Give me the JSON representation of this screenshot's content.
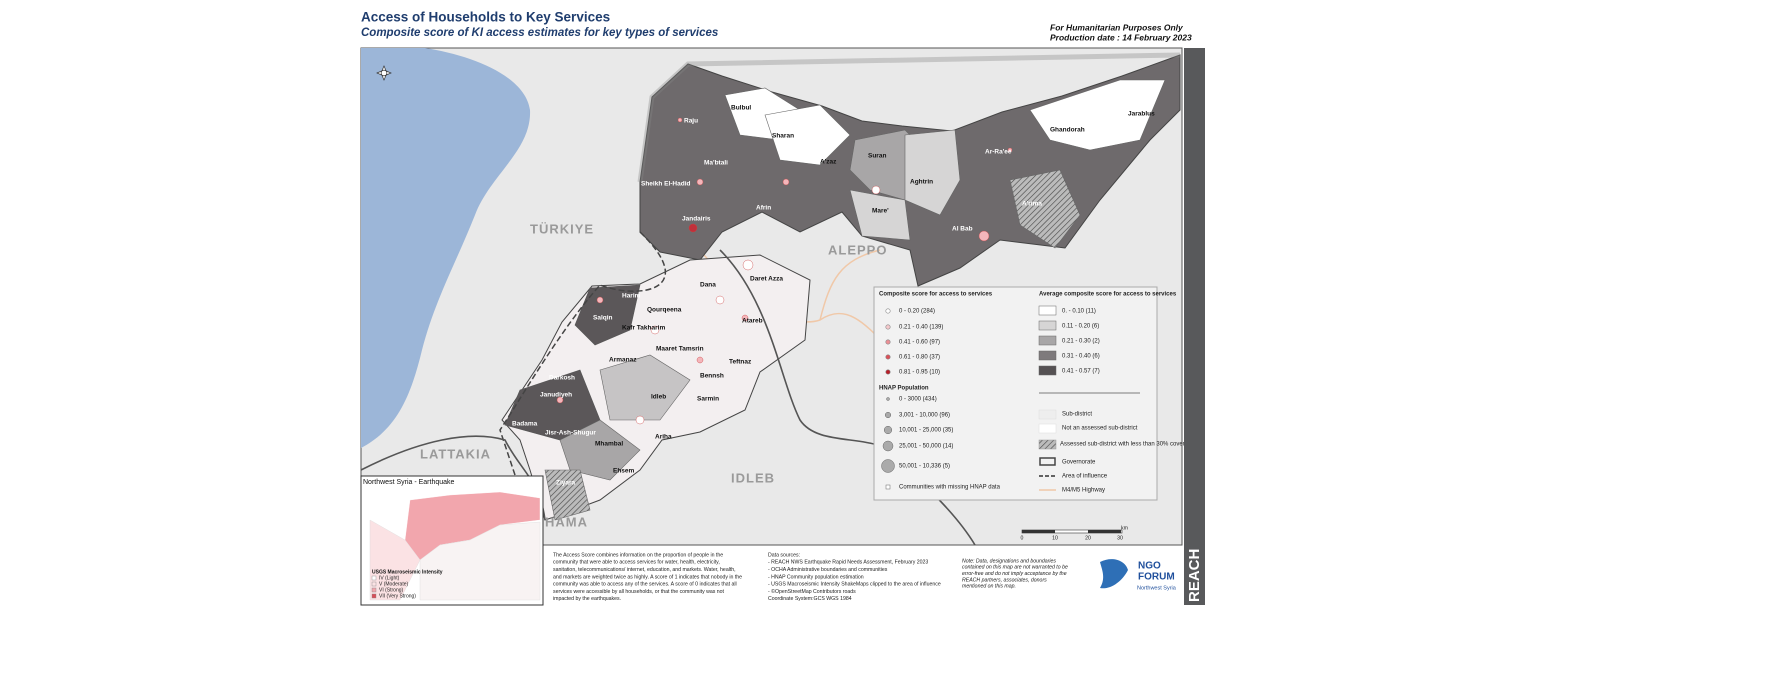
{
  "header": {
    "title": "Access of Households to Key Services",
    "subtitle": "Composite score of KI access estimates for key types of services",
    "notes": [
      "For Humanitarian Purposes Only",
      "Production date : 14 February 2023"
    ]
  },
  "map": {
    "regions": [
      "TÜRKIYE",
      "ALEPPO",
      "LATTAKIA",
      "IDLEB",
      "HAMA"
    ],
    "places": [
      "Bulbul",
      "Sharan",
      "Raju",
      "Ma'btali",
      "Sheikh El-Hadid",
      "Jandairis",
      "Afrin",
      "A'zaz",
      "Suran",
      "Aghtrin",
      "Mare'",
      "Ar-Ra'ee",
      "Ghandorah",
      "Jarablus",
      "Al Bab",
      "A'rima",
      "Harim",
      "Dana",
      "Daret Azza",
      "Qourqeena",
      "Kafr Takharim",
      "Salqin",
      "Atareb",
      "Armanaz",
      "Maaret Tamsrin",
      "Teftnaz",
      "Darkosh",
      "Bennsh",
      "Janudiyeh",
      "Idleb",
      "Sarmin",
      "Badama",
      "Jisr-Ash-Shugur",
      "Mhambal",
      "Ariha",
      "Ehsem",
      "Ziyara"
    ]
  },
  "legend": {
    "score_title": "Composite score for access to services",
    "score_items": [
      "0 - 0.20 (284)",
      "0.21 - 0.40 (139)",
      "0.41 - 0.60 (97)",
      "0.61 - 0.80 (37)",
      "0.81 - 0.95 (10)"
    ],
    "pop_title": "HNAP Population",
    "pop_items": [
      "0 - 3000 (434)",
      "3,001 - 10,000 (96)",
      "10,001 - 25,000 (35)",
      "25,001 - 50,000 (14)",
      "50,001 - 10,336 (5)"
    ],
    "missing": "Communities with missing HNAP data",
    "avg_title": "Average composite score for access to services",
    "avg_items": [
      "0. - 0.10 (11)",
      "0.11 - 0.20 (6)",
      "0.21 - 0.30 (2)",
      "0.31 - 0.40 (6)",
      "0.41 - 0.57 (7)"
    ],
    "other_items": [
      "Sub-district",
      "Not an assessed sub-district",
      "Assessed sub-district with less than 30% coverage",
      "Governorate",
      "Area of influence",
      "M4/M5 Highway"
    ],
    "scale": [
      "0",
      "10",
      "20",
      "30",
      "km"
    ]
  },
  "inset": {
    "title": "Northwest Syria - Earthquake",
    "legend_title": "USGS Macroseismic Intensity",
    "items": [
      "IV (Light)",
      "V (Moderate)",
      "VI (Strong)",
      "VII (Very Strong)"
    ]
  },
  "footer": {
    "description": [
      "The Access Score combines information on the proportion of people in the",
      "community that were able to access services for water, health, electricity,",
      "sanitation, telecommunications/ internet, education, and markets. Water, health,",
      "and markets are weighted twice as highly. A score of 1 indicates that nobody in the",
      "community was able to access any of the services. A score of 0 indicates that all",
      "services were accessible by all households, or that the community was not",
      "impacted by the earthquakes."
    ],
    "sources": [
      "Data sources:",
      "- REACH NWS Earthquake Rapid Needs Assessment, February 2023",
      "- OCHA Administrative boundaries and communities",
      "- HNAP Community population estimation",
      "- USGS Macroseismic Intensity ShakeMaps clipped to the area of influence",
      "- ©OpenStreetMap Contributors roads",
      "Coordinate System:GCS WGS 1984"
    ],
    "note": [
      "Note: Data, designations and boundaries",
      "contained on this map are not warranted to be",
      "error-free and do not imply acceptance by the",
      "REACH partners, associates, donors",
      "mentioned on this map."
    ],
    "logo": [
      "NGO",
      "FORUM",
      "Northwest Syria"
    ],
    "brand": "REACH"
  }
}
